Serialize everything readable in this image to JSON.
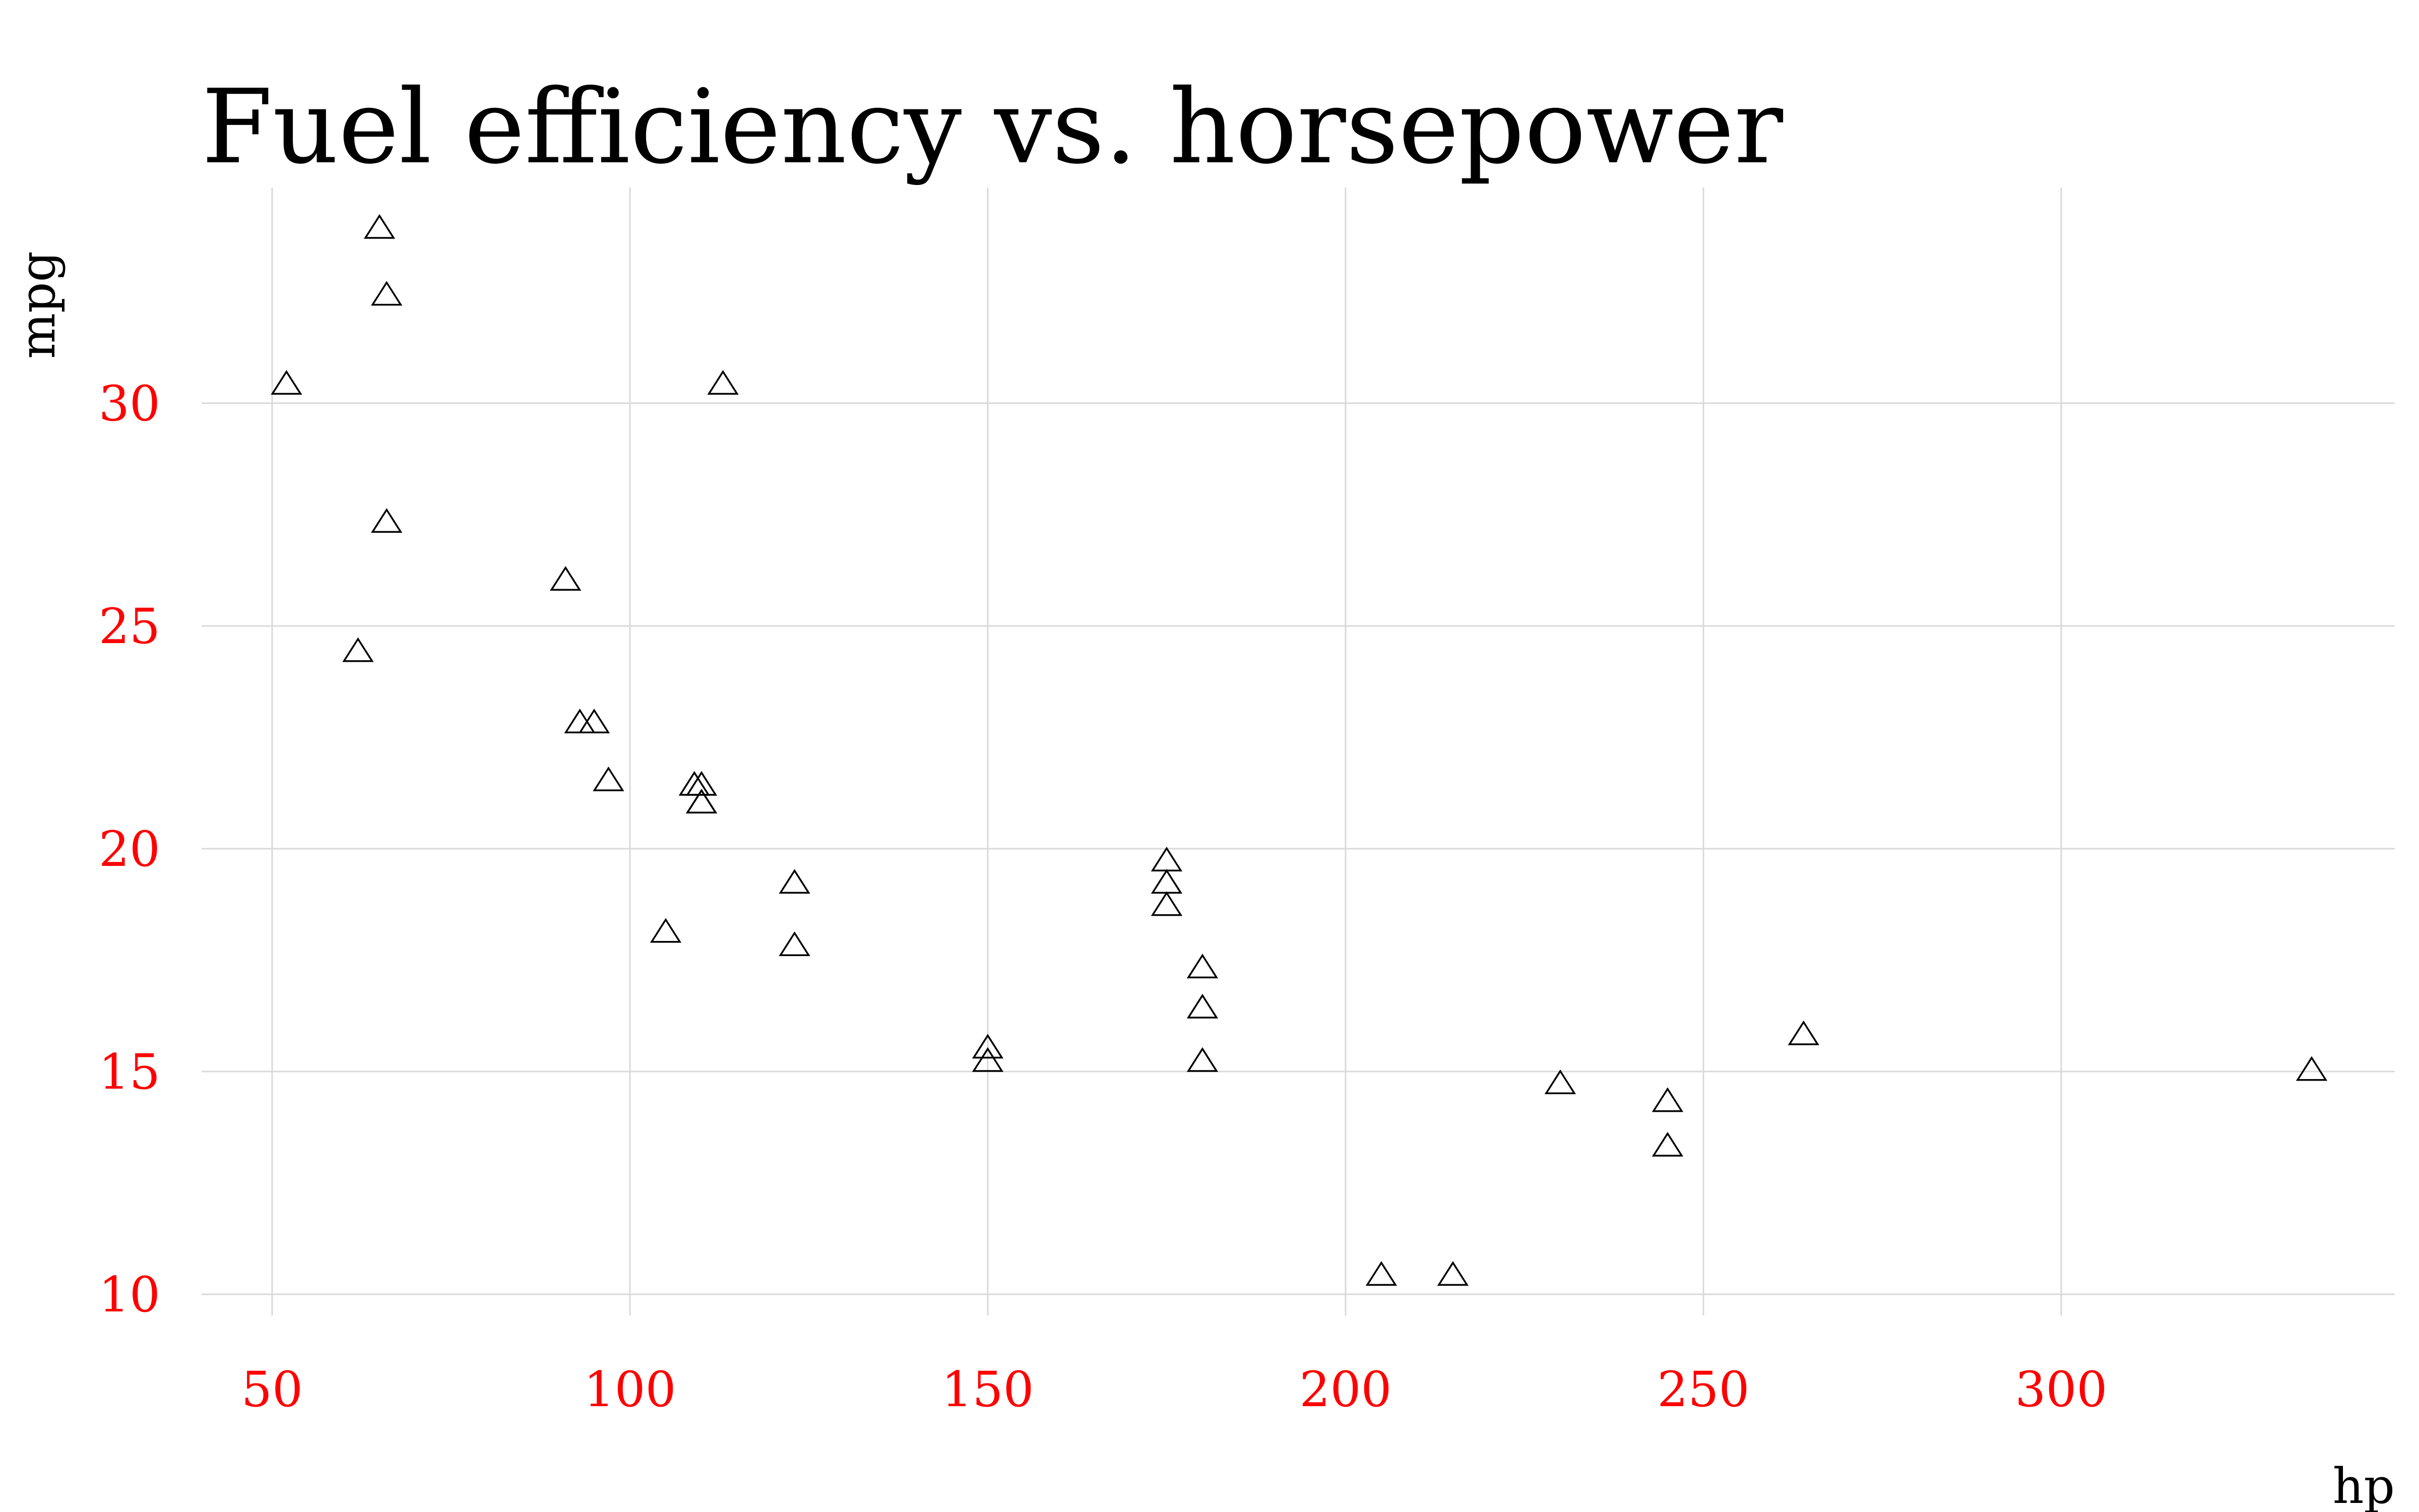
{
  "chart_data": {
    "type": "scatter",
    "title": "Fuel efficiency vs. horsepower",
    "xlabel": "hp",
    "ylabel": "mpg",
    "xlim": [
      40,
      340
    ],
    "ylim": [
      9.5,
      34.5
    ],
    "xticks": [
      50,
      100,
      150,
      200,
      250,
      300
    ],
    "yticks": [
      10,
      15,
      20,
      25,
      30
    ],
    "xtick_labels": [
      "50",
      "100",
      "150",
      "200",
      "250",
      "300"
    ],
    "ytick_labels": [
      "10",
      "15",
      "20",
      "25",
      "30"
    ],
    "grid": true,
    "marker": "triangle-open",
    "colors": {
      "tick_labels": "#ff0000",
      "points": "#000000",
      "grid": "#d9d9d9",
      "text": "#000000"
    },
    "series": [
      {
        "points": [
          {
            "x": 110,
            "y": 21.0
          },
          {
            "x": 110,
            "y": 21.0
          },
          {
            "x": 93,
            "y": 22.8
          },
          {
            "x": 110,
            "y": 21.4
          },
          {
            "x": 175,
            "y": 18.7
          },
          {
            "x": 105,
            "y": 18.1
          },
          {
            "x": 245,
            "y": 14.3
          },
          {
            "x": 62,
            "y": 24.4
          },
          {
            "x": 95,
            "y": 22.8
          },
          {
            "x": 123,
            "y": 19.2
          },
          {
            "x": 123,
            "y": 17.8
          },
          {
            "x": 180,
            "y": 16.4
          },
          {
            "x": 180,
            "y": 17.3
          },
          {
            "x": 180,
            "y": 15.2
          },
          {
            "x": 205,
            "y": 10.4
          },
          {
            "x": 215,
            "y": 10.4
          },
          {
            "x": 230,
            "y": 14.7
          },
          {
            "x": 66,
            "y": 32.4
          },
          {
            "x": 52,
            "y": 30.4
          },
          {
            "x": 65,
            "y": 33.9
          },
          {
            "x": 97,
            "y": 21.5
          },
          {
            "x": 150,
            "y": 15.5
          },
          {
            "x": 150,
            "y": 15.2
          },
          {
            "x": 245,
            "y": 13.3
          },
          {
            "x": 175,
            "y": 19.2
          },
          {
            "x": 66,
            "y": 27.3
          },
          {
            "x": 91,
            "y": 26.0
          },
          {
            "x": 113,
            "y": 30.4
          },
          {
            "x": 264,
            "y": 15.8
          },
          {
            "x": 175,
            "y": 19.7
          },
          {
            "x": 335,
            "y": 15.0
          },
          {
            "x": 109,
            "y": 21.4
          }
        ]
      }
    ]
  }
}
